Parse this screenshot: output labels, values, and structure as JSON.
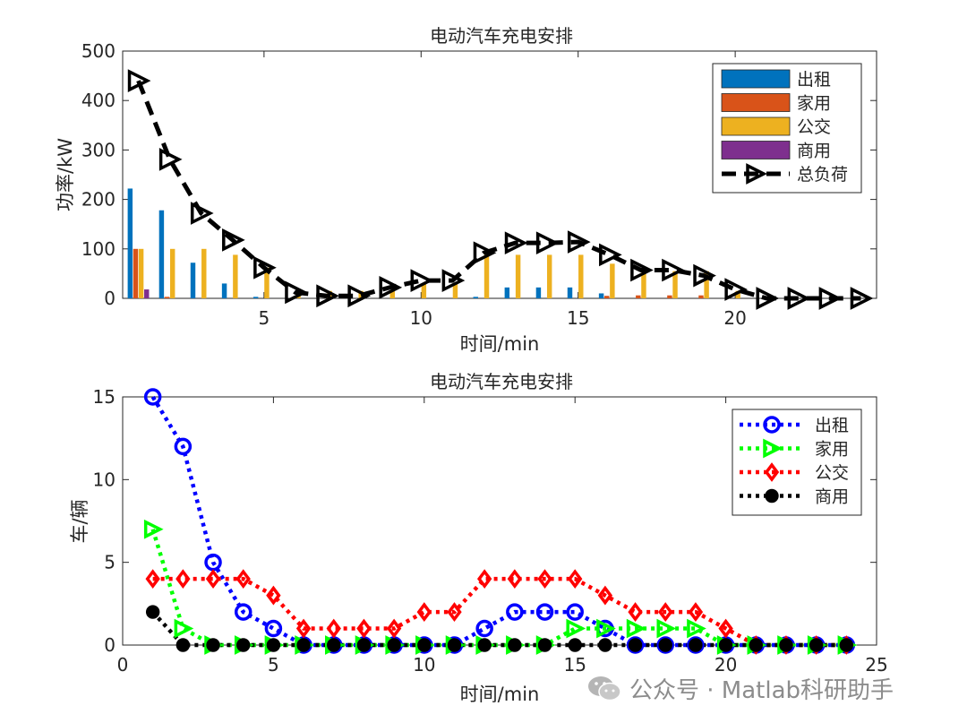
{
  "charts": [
    {
      "type": "bar+line",
      "title": "电动汽车充电安排",
      "xlabel": "时间/min",
      "ylabel": "功率/kW",
      "xlim": [
        0.5,
        24.5
      ],
      "ylim": [
        0,
        500
      ],
      "xticks": [
        5,
        10,
        15,
        20
      ],
      "yticks": [
        0,
        100,
        200,
        300,
        400,
        500
      ],
      "legend_position": "top-right",
      "bar_series": [
        {
          "name": "出租",
          "color": "#0072BD",
          "values": [
            222,
            178,
            72,
            30,
            3,
            0,
            0,
            0,
            0,
            0,
            0,
            3,
            22,
            22,
            22,
            10,
            0,
            0,
            0,
            0,
            0,
            0,
            0,
            0
          ]
        },
        {
          "name": "家用",
          "color": "#D95319",
          "values": [
            100,
            3,
            0,
            0,
            0,
            0,
            0,
            0,
            0,
            0,
            0,
            0,
            0,
            0,
            0,
            5,
            6,
            6,
            6,
            0,
            0,
            0,
            0,
            0
          ]
        },
        {
          "name": "公交",
          "color": "#EDB120",
          "values": [
            100,
            100,
            100,
            88,
            62,
            15,
            15,
            15,
            15,
            30,
            30,
            88,
            88,
            88,
            88,
            70,
            55,
            55,
            55,
            15,
            0,
            0,
            0,
            0
          ]
        },
        {
          "name": "商用",
          "color": "#7E2F8E",
          "values": [
            18,
            0,
            0,
            0,
            0,
            0,
            0,
            0,
            0,
            0,
            0,
            0,
            0,
            0,
            0,
            0,
            0,
            0,
            0,
            0,
            0,
            0,
            0,
            0
          ]
        }
      ],
      "line_series": {
        "name": "总负荷",
        "color": "#000000",
        "values": [
          440,
          281,
          172,
          118,
          62,
          12,
          5,
          5,
          22,
          36,
          36,
          92,
          112,
          112,
          114,
          88,
          57,
          57,
          46,
          18,
          0,
          0,
          0,
          0
        ]
      }
    },
    {
      "type": "line",
      "title": "电动汽车充电安排",
      "xlabel": "时间/min",
      "ylabel": "车/辆",
      "xlim": [
        0,
        25
      ],
      "ylim": [
        0,
        15
      ],
      "xticks": [
        0,
        5,
        10,
        15,
        20,
        25
      ],
      "yticks": [
        0,
        5,
        10,
        15
      ],
      "legend_position": "top-right",
      "series": [
        {
          "name": "出租",
          "color": "#0000FF",
          "marker": "circle",
          "values": [
            15,
            12,
            5,
            2,
            1,
            0,
            0,
            0,
            0,
            0,
            0,
            1,
            2,
            2,
            2,
            1,
            0,
            0,
            0,
            0,
            0,
            0,
            0,
            0
          ]
        },
        {
          "name": "家用",
          "color": "#00FF00",
          "marker": "triangle-right",
          "values": [
            7,
            1,
            0,
            0,
            0,
            0,
            0,
            0,
            0,
            0,
            0,
            0,
            0,
            0,
            1,
            1,
            1,
            1,
            1,
            0,
            0,
            0,
            0,
            0
          ]
        },
        {
          "name": "公交",
          "color": "#FF0000",
          "marker": "diamond",
          "values": [
            4,
            4,
            4,
            4,
            3,
            1,
            1,
            1,
            1,
            2,
            2,
            4,
            4,
            4,
            4,
            3,
            2,
            2,
            2,
            1,
            0,
            0,
            0,
            0
          ]
        },
        {
          "name": "商用",
          "color": "#000000",
          "marker": "dot",
          "values": [
            2,
            0,
            0,
            0,
            0,
            0,
            0,
            0,
            0,
            0,
            0,
            0,
            0,
            0,
            0,
            0,
            0,
            0,
            0,
            0,
            0,
            0,
            0,
            0
          ]
        }
      ]
    }
  ],
  "watermark": {
    "text": "公众号 · Matlab科研助手",
    "icon": "wechat-icon"
  }
}
